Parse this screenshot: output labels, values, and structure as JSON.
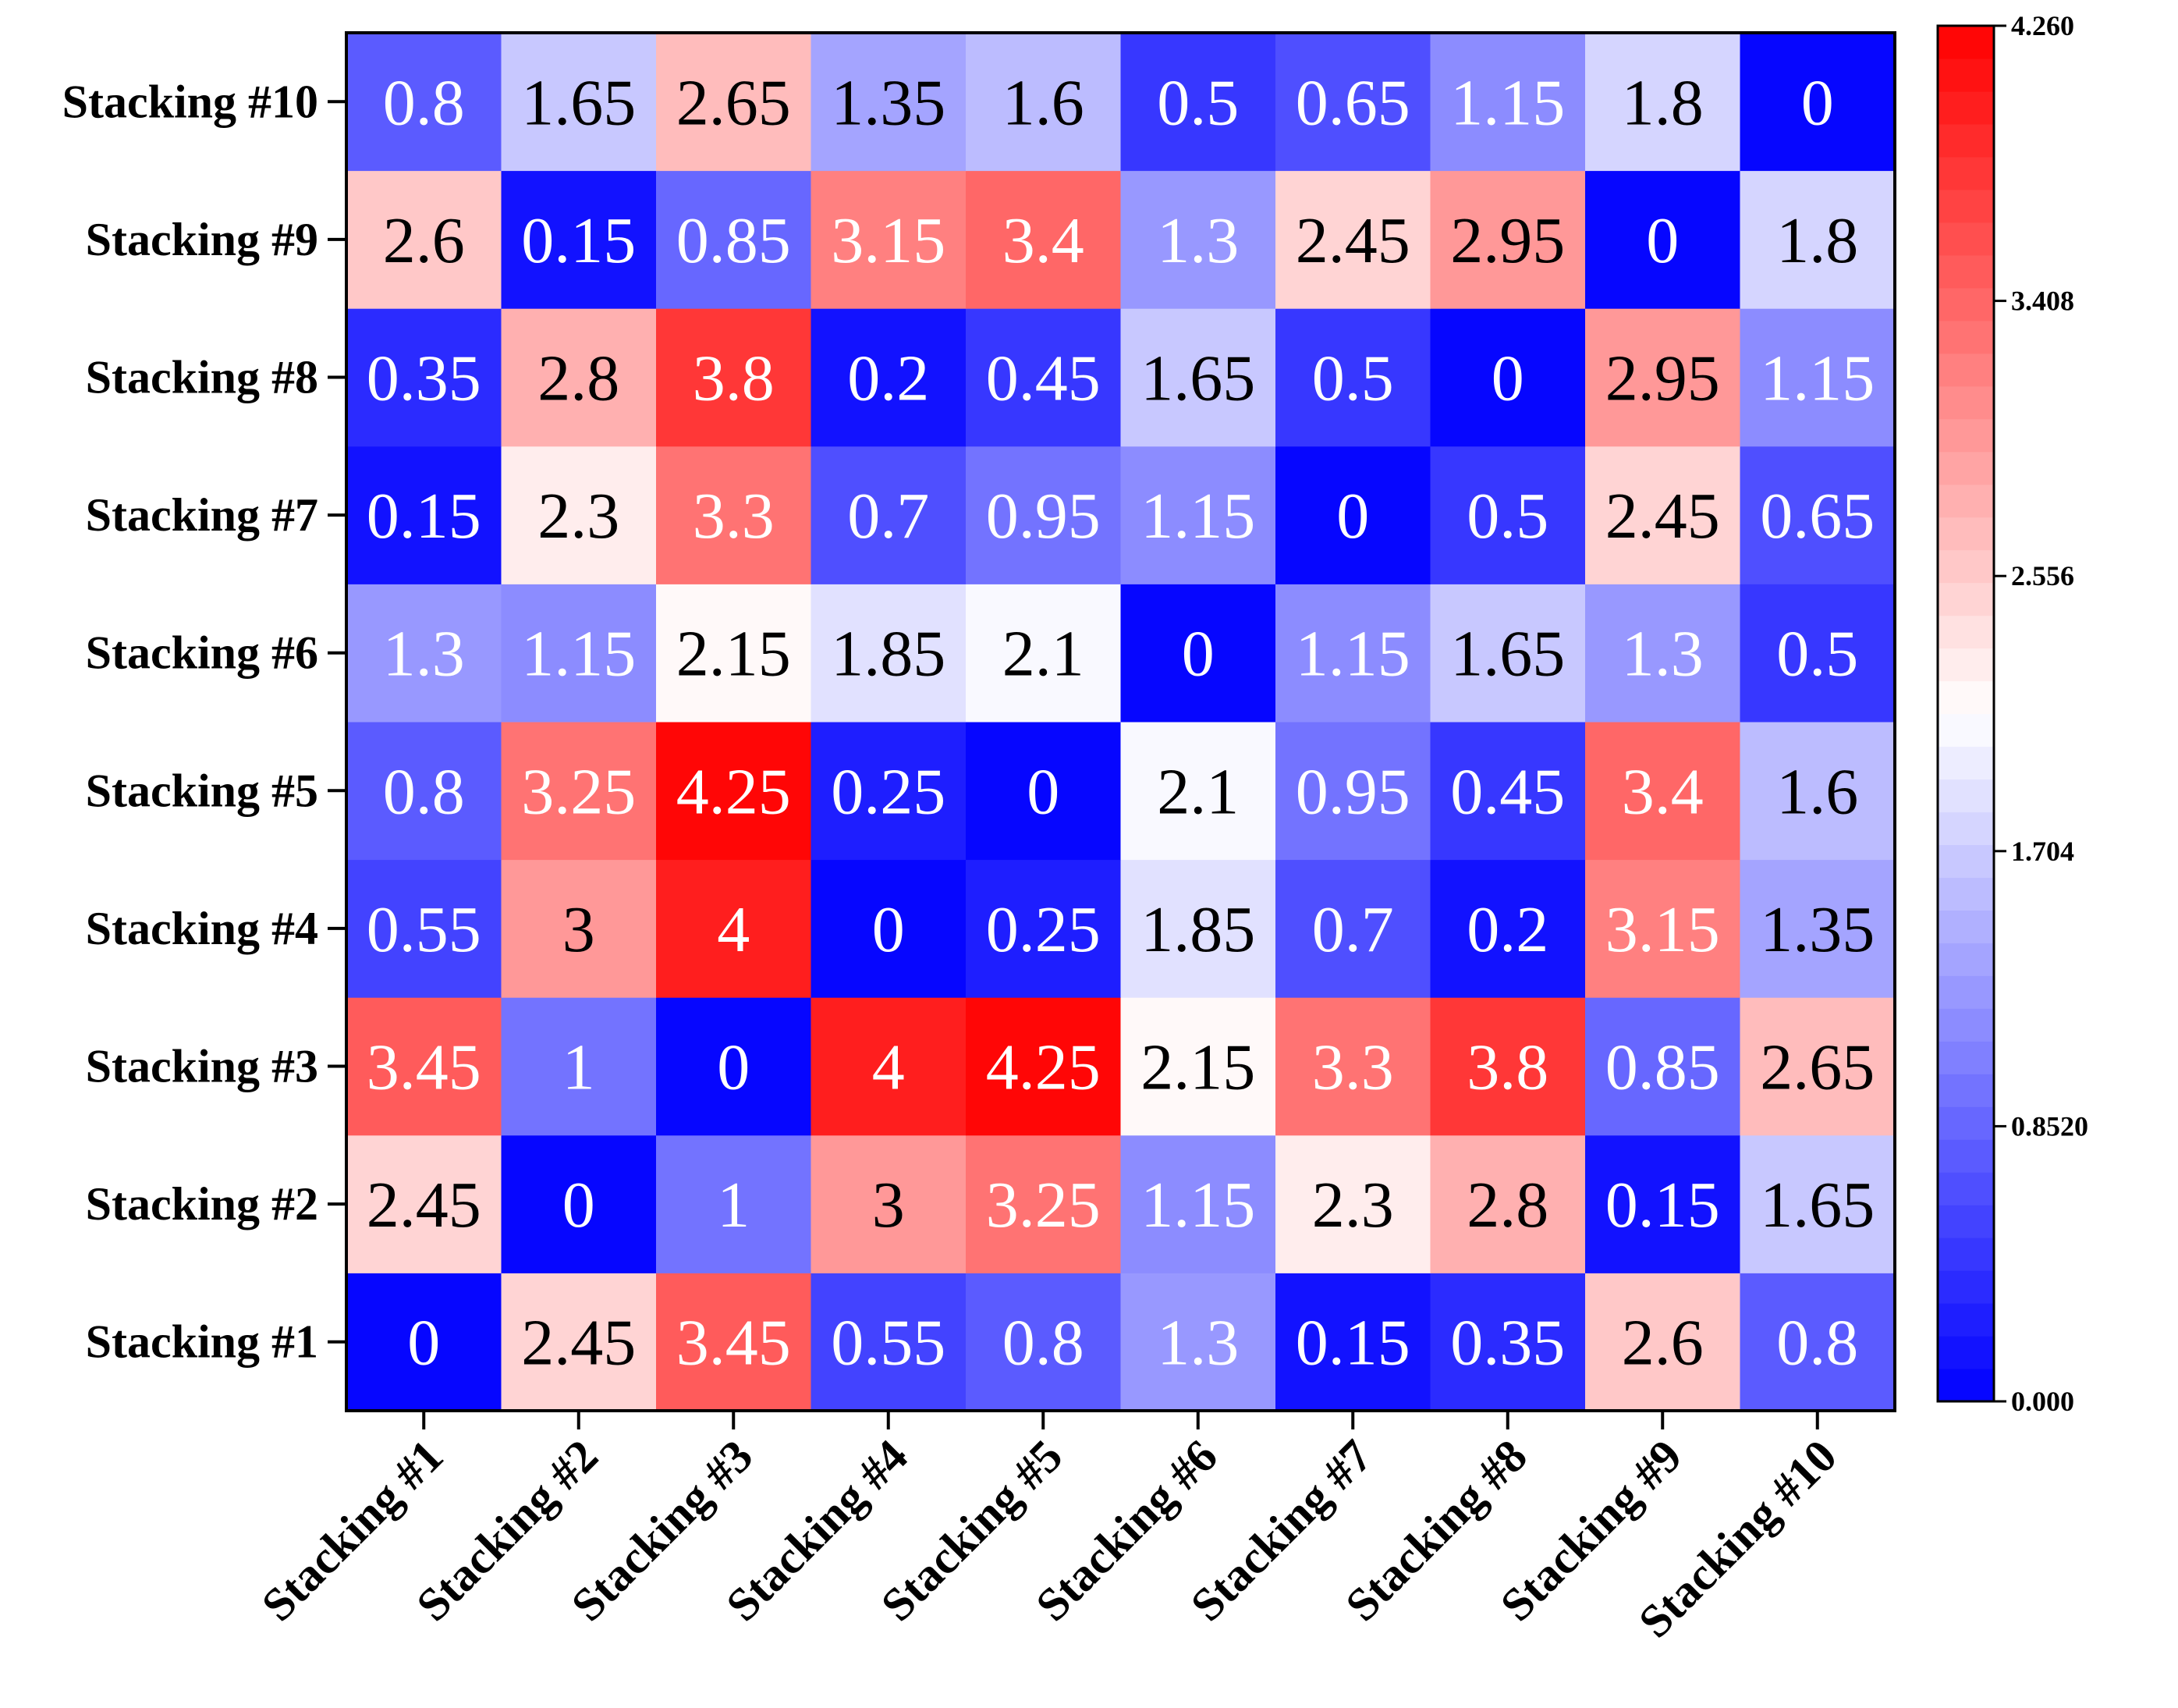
{
  "chart_data": {
    "type": "heatmap",
    "title": "",
    "xlabel": "",
    "ylabel": "",
    "x_categories": [
      "Stacking #1",
      "Stacking #2",
      "Stacking #3",
      "Stacking #4",
      "Stacking #5",
      "Stacking #6",
      "Stacking #7",
      "Stacking #8",
      "Stacking #9",
      "Stacking #10"
    ],
    "y_categories": [
      "Stacking #1",
      "Stacking #2",
      "Stacking #3",
      "Stacking #4",
      "Stacking #5",
      "Stacking #6",
      "Stacking #7",
      "Stacking #8",
      "Stacking #9",
      "Stacking #10"
    ],
    "values": [
      [
        0,
        2.45,
        3.45,
        0.55,
        0.8,
        1.3,
        0.15,
        0.35,
        2.6,
        0.8
      ],
      [
        2.45,
        0,
        1,
        3,
        3.25,
        1.15,
        2.3,
        2.8,
        0.15,
        1.65
      ],
      [
        3.45,
        1,
        0,
        4,
        4.25,
        2.15,
        3.3,
        3.8,
        0.85,
        2.65
      ],
      [
        0.55,
        3,
        4,
        0,
        0.25,
        1.85,
        0.7,
        0.2,
        3.15,
        1.35
      ],
      [
        0.8,
        3.25,
        4.25,
        0.25,
        0,
        2.1,
        0.95,
        0.45,
        3.4,
        1.6
      ],
      [
        1.3,
        1.15,
        2.15,
        1.85,
        2.1,
        0,
        1.15,
        1.65,
        1.3,
        0.5
      ],
      [
        0.15,
        2.3,
        3.3,
        0.7,
        0.95,
        1.15,
        0,
        0.5,
        2.45,
        0.65
      ],
      [
        0.35,
        2.8,
        3.8,
        0.2,
        0.45,
        1.65,
        0.5,
        0,
        2.95,
        1.15
      ],
      [
        2.6,
        0.15,
        0.85,
        3.15,
        3.4,
        1.3,
        2.45,
        2.95,
        0,
        1.8
      ],
      [
        0.8,
        1.65,
        2.65,
        1.35,
        1.6,
        0.5,
        0.65,
        1.15,
        1.8,
        0
      ]
    ],
    "value_labels": [
      [
        "0",
        "2.45",
        "3.45",
        "0.55",
        "0.8",
        "1.3",
        "0.15",
        "0.35",
        "2.6",
        "0.8"
      ],
      [
        "2.45",
        "0",
        "1",
        "3",
        "3.25",
        "1.15",
        "2.3",
        "2.8",
        "0.15",
        "1.65"
      ],
      [
        "3.45",
        "1",
        "0",
        "4",
        "4.25",
        "2.15",
        "3.3",
        "3.8",
        "0.85",
        "2.65"
      ],
      [
        "0.55",
        "3",
        "4",
        "0",
        "0.25",
        "1.85",
        "0.7",
        "0.2",
        "3.15",
        "1.35"
      ],
      [
        "0.8",
        "3.25",
        "4.25",
        "0.25",
        "0",
        "2.1",
        "0.95",
        "0.45",
        "3.4",
        "1.6"
      ],
      [
        "1.3",
        "1.15",
        "2.15",
        "1.85",
        "2.1",
        "0",
        "1.15",
        "1.65",
        "1.3",
        "0.5"
      ],
      [
        "0.15",
        "2.3",
        "3.3",
        "0.7",
        "0.95",
        "1.15",
        "0",
        "0.5",
        "2.45",
        "0.65"
      ],
      [
        "0.35",
        "2.8",
        "3.8",
        "0.2",
        "0.45",
        "1.65",
        "0.5",
        "0",
        "2.95",
        "1.15"
      ],
      [
        "2.6",
        "0.15",
        "0.85",
        "3.15",
        "3.4",
        "1.3",
        "2.45",
        "2.95",
        "0",
        "1.8"
      ],
      [
        "0.8",
        "1.65",
        "2.65",
        "1.35",
        "1.6",
        "0.5",
        "0.65",
        "1.15",
        "1.8",
        "0"
      ]
    ],
    "colorbar": {
      "min": 0,
      "max": 4.26,
      "ticks": [
        0,
        0.852,
        1.704,
        2.556,
        3.408,
        4.26
      ],
      "tick_labels": [
        "0.000",
        "0.8520",
        "1.704",
        "2.556",
        "3.408",
        "4.260"
      ],
      "colors": [
        "#0000ff",
        "#ffffff",
        "#ff0000"
      ],
      "levels": 42
    },
    "grid": false
  }
}
